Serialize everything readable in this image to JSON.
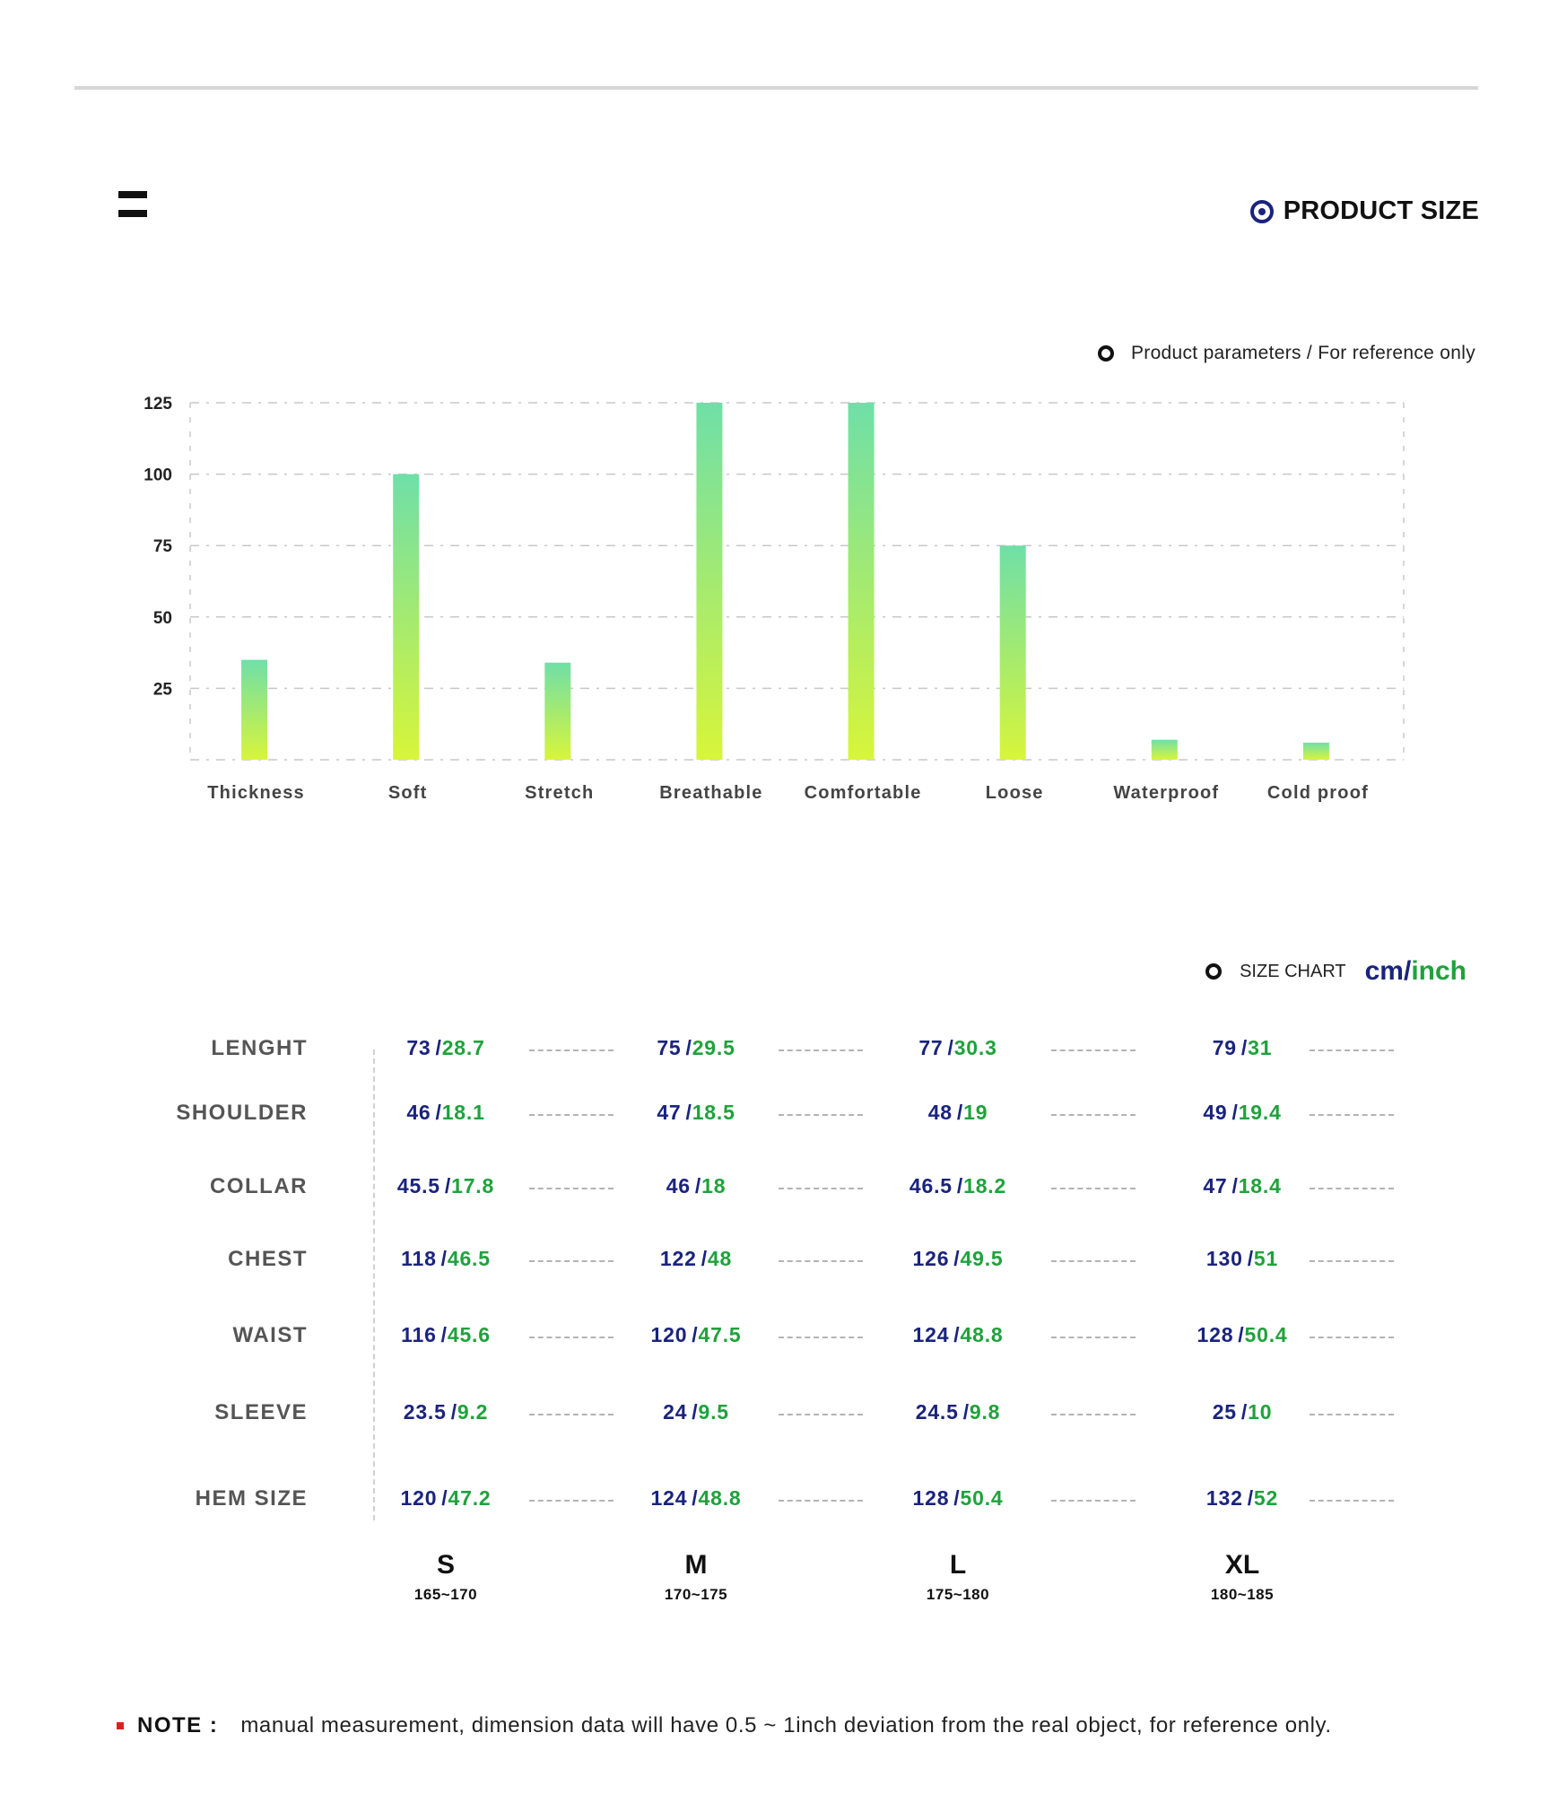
{
  "header": {
    "section_title": "PRODUCT SIZE"
  },
  "chart_note": "Product parameters / For reference only",
  "chart_data": {
    "type": "bar",
    "categories": [
      "Thickness",
      "Soft",
      "Stretch",
      "Breathable",
      "Comfortable",
      "Loose",
      "Waterproof",
      "Cold proof"
    ],
    "values": [
      35,
      100,
      34,
      125,
      125,
      75,
      7,
      6
    ],
    "yticks": [
      25,
      50,
      75,
      100,
      125
    ],
    "ylim": [
      0,
      125
    ],
    "grid": true,
    "colors": {
      "bar_top": "#6fdfa8",
      "bar_bottom": "#d8f53a",
      "grid": "#c8c8c8",
      "tick_text": "#222222"
    }
  },
  "size_chart": {
    "label": "SIZE CHART",
    "unit_cm": "cm",
    "unit_sep": "/",
    "unit_inch": "inch",
    "rows": [
      {
        "label": "LENGHT",
        "cells": [
          {
            "cm": "73",
            "in": "28.7"
          },
          {
            "cm": "75",
            "in": "29.5"
          },
          {
            "cm": "77",
            "in": "30.3"
          },
          {
            "cm": "79",
            "in": "31"
          }
        ]
      },
      {
        "label": "SHOULDER",
        "cells": [
          {
            "cm": "46",
            "in": "18.1"
          },
          {
            "cm": "47",
            "in": "18.5"
          },
          {
            "cm": "48",
            "in": "19"
          },
          {
            "cm": "49",
            "in": "19.4"
          }
        ]
      },
      {
        "label": "COLLAR",
        "cells": [
          {
            "cm": "45.5",
            "in": "17.8"
          },
          {
            "cm": "46",
            "in": "18"
          },
          {
            "cm": "46.5",
            "in": "18.2"
          },
          {
            "cm": "47",
            "in": "18.4"
          }
        ]
      },
      {
        "label": "CHEST",
        "cells": [
          {
            "cm": "118",
            "in": "46.5"
          },
          {
            "cm": "122",
            "in": "48"
          },
          {
            "cm": "126",
            "in": "49.5"
          },
          {
            "cm": "130",
            "in": "51"
          }
        ]
      },
      {
        "label": "WAIST",
        "cells": [
          {
            "cm": "116",
            "in": "45.6"
          },
          {
            "cm": "120",
            "in": "47.5"
          },
          {
            "cm": "124",
            "in": "48.8"
          },
          {
            "cm": "128",
            "in": "50.4"
          }
        ]
      },
      {
        "label": "SLEEVE",
        "cells": [
          {
            "cm": "23.5",
            "in": "9.2"
          },
          {
            "cm": "24",
            "in": "9.5"
          },
          {
            "cm": "24.5",
            "in": "9.8"
          },
          {
            "cm": "25",
            "in": "10"
          }
        ]
      },
      {
        "label": "HEM SIZE",
        "cells": [
          {
            "cm": "120",
            "in": "47.2"
          },
          {
            "cm": "124",
            "in": "48.8"
          },
          {
            "cm": "128",
            "in": "50.4"
          },
          {
            "cm": "132",
            "in": "52"
          }
        ]
      }
    ],
    "sizes": [
      {
        "name": "S",
        "range": "165~170"
      },
      {
        "name": "M",
        "range": "170~175"
      },
      {
        "name": "L",
        "range": "175~180"
      },
      {
        "name": "XL",
        "range": "180~185"
      }
    ],
    "colors": {
      "cm": "#1a237e",
      "inch": "#1fa23c"
    }
  },
  "note": {
    "label": "NOTE :",
    "text": "manual measurement, dimension data will have 0.5 ~ 1inch deviation from the real object, for reference only."
  }
}
